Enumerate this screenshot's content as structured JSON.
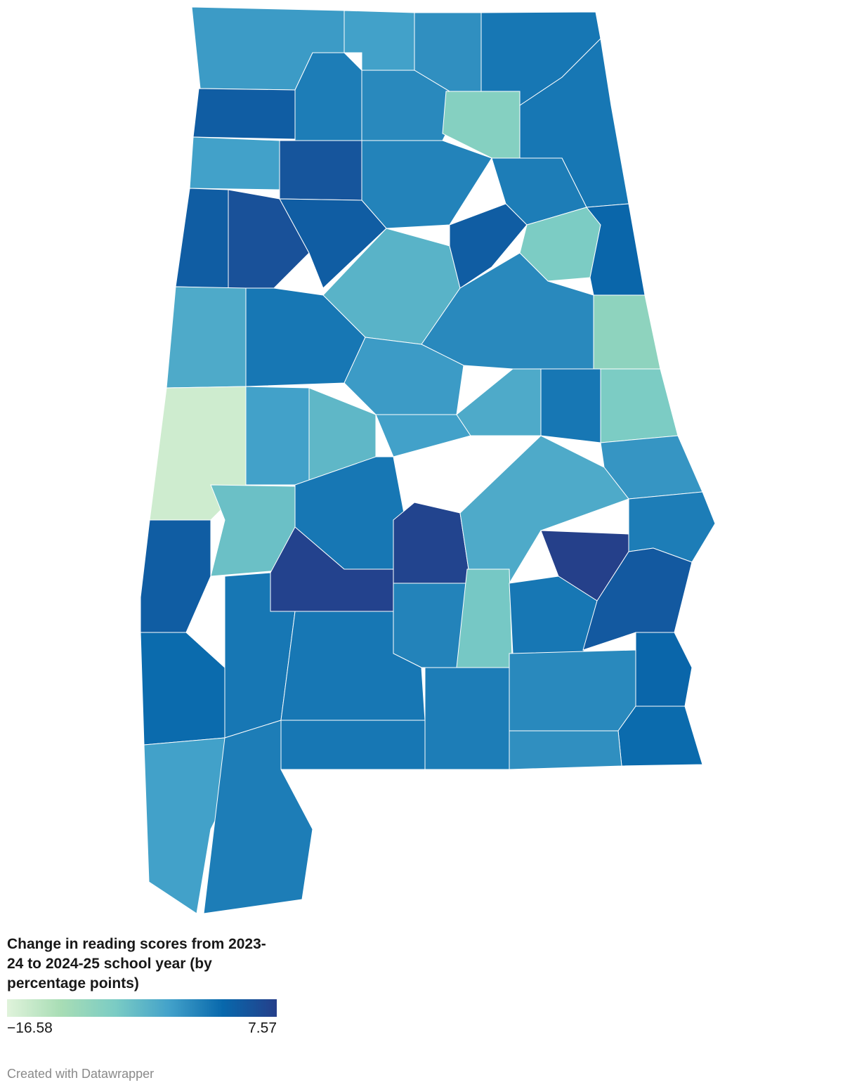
{
  "chart_data": {
    "type": "choropleth",
    "title": "Change in reading scores from 2023-24 to 2024-25 school year (by percentage points)",
    "colors": [
      "#e0f3db",
      "#a8ddb5",
      "#7bccc4",
      "#43a2ca",
      "#0868ac",
      "#253f8a"
    ],
    "ticks": [
      {
        "value": -16.58,
        "label": "−16.58"
      },
      7.57
    ],
    "values": [
      -1.5,
      -2,
      -0.5,
      1.5,
      4,
      1,
      0,
      -8,
      1.5,
      -2,
      5,
      0.5,
      1,
      4,
      5.5,
      4,
      -4,
      4,
      -7,
      3,
      -3,
      1.5,
      0,
      -9,
      -1.5,
      -15,
      -2,
      -4.5,
      -2,
      -3,
      1.5,
      -7,
      -1,
      -5.5,
      1.5,
      7,
      -3,
      7.5,
      1,
      4,
      7.2,
      0.5,
      -6.5,
      1.5,
      4.5,
      2.5,
      1.5,
      1.5,
      1,
      0,
      3,
      2.5,
      -0.5,
      1.5,
      -2,
      1
    ]
  },
  "credit": "Created with Datawrapper"
}
